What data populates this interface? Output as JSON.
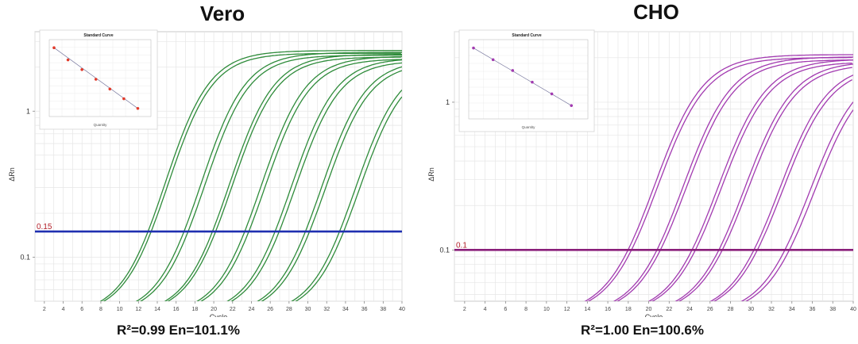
{
  "chart_data": [
    {
      "type": "line",
      "title": "Vero",
      "xlabel": "Cycle",
      "ylabel": "ΔRn",
      "yscale": "log",
      "xlim": [
        1,
        40
      ],
      "ylim": [
        0.05,
        3.5
      ],
      "x_ticks": [
        2,
        4,
        6,
        8,
        10,
        12,
        14,
        16,
        18,
        20,
        22,
        24,
        26,
        28,
        30,
        32,
        34,
        36,
        38,
        40
      ],
      "y_ticks": [
        {
          "value": 1,
          "label": "1"
        },
        {
          "value": 0.1,
          "label": "0.1"
        }
      ],
      "threshold": {
        "value": 0.15,
        "label": "0.15",
        "color": "#1f2fb0"
      },
      "curve_color": "#2e8b3a",
      "plateau": 2.6,
      "curves_start_cycles": [
        8.0,
        8.3,
        11.8,
        12.2,
        14.8,
        15.1,
        18.2,
        18.6,
        21.4,
        21.8,
        24.6,
        25.0,
        28.2,
        28.6
      ],
      "stat_text": "R²=0.99   En=101.1%",
      "inset": {
        "title": "Standard Curve",
        "xlabel": "Quantity",
        "point_color": "#e23a2a",
        "points": [
          [
            1,
            8.5
          ],
          [
            2,
            7.0
          ],
          [
            3,
            5.8
          ],
          [
            4,
            4.6
          ],
          [
            5,
            3.4
          ],
          [
            6,
            2.2
          ],
          [
            7,
            1.0
          ]
        ]
      }
    },
    {
      "type": "line",
      "title": "CHO",
      "xlabel": "Cycle",
      "ylabel": "ΔRn",
      "yscale": "log",
      "xlim": [
        1,
        40
      ],
      "ylim": [
        0.045,
        3.0
      ],
      "x_ticks": [
        2,
        4,
        6,
        8,
        10,
        12,
        14,
        16,
        18,
        20,
        22,
        24,
        26,
        28,
        30,
        32,
        34,
        36,
        38,
        40
      ],
      "y_ticks": [
        {
          "value": 1,
          "label": "1"
        },
        {
          "value": 0.1,
          "label": "0.1"
        }
      ],
      "threshold": {
        "value": 0.1,
        "label": "0.1",
        "color": "#8a1f7a"
      },
      "curve_color": "#a23ab0",
      "plateau": 2.1,
      "curves_start_cycles": [
        13.8,
        14.1,
        16.6,
        16.9,
        20.0,
        20.3,
        22.6,
        22.9,
        26.0,
        26.3,
        29.0,
        29.4
      ],
      "stat_text": "R²=1.00   En=100.6%",
      "inset": {
        "title": "Standard Curve",
        "xlabel": "Quantity",
        "point_color": "#a23ab0",
        "points": [
          [
            1,
            8.5
          ],
          [
            2,
            7.1
          ],
          [
            3,
            5.8
          ],
          [
            4,
            4.4
          ],
          [
            5,
            3.0
          ],
          [
            6,
            1.6
          ]
        ]
      }
    }
  ]
}
